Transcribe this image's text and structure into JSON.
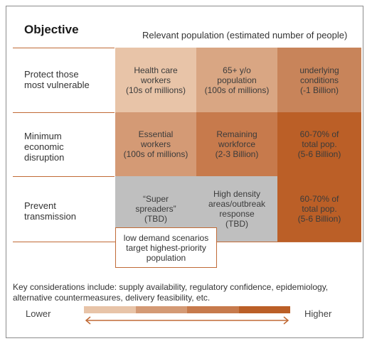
{
  "header": {
    "objective": "Objective",
    "population": "Relevant population (estimated number of people)"
  },
  "rows": [
    {
      "label": [
        "Protect those",
        "most vulnerable"
      ],
      "cells": [
        [
          "Health care",
          "workers",
          "(10s of millions)"
        ],
        [
          "65+ y/o",
          "population",
          "(100s of millions)"
        ],
        [
          "underlying",
          "conditions",
          "(-1 Billion)"
        ]
      ]
    },
    {
      "label": [
        "Minimum",
        "economic",
        "disruption"
      ],
      "cells": [
        [
          "Essential",
          "workers",
          "(100s of millions)"
        ],
        [
          "Remaining",
          "workforce",
          "(2-3 Billion)"
        ],
        [
          "60-70% of",
          "total pop.",
          "(5-6 Billion)"
        ]
      ]
    },
    {
      "label": [
        "Prevent",
        "transmission"
      ],
      "cells": [
        [
          "“Super",
          "spreaders”",
          "(TBD)"
        ],
        [
          "High density",
          "areas/outbreak",
          "response",
          "(TBD)"
        ],
        [
          "60-70% of",
          "total pop.",
          "(5-6 Billion)"
        ]
      ]
    }
  ],
  "callout": [
    "low demand scenarios",
    "target highest-priority",
    "population"
  ],
  "key_considerations": "Key considerations include: supply availability, regulatory confidence, epidemiology, alternative countermeasures, delivery feasibility, etc.",
  "scale": {
    "low_label": "Lower",
    "high_label": "Higher",
    "colors": [
      "#e8c4a8",
      "#d49a75",
      "#c77a4c",
      "#bb5f27"
    ]
  },
  "colors": {
    "light": "#e8c4a8",
    "medium": "#d49a75",
    "dark": "#c77a4c",
    "darkest": "#bb5f27",
    "gray": "#bfbfbf",
    "line": "#c06a36"
  }
}
